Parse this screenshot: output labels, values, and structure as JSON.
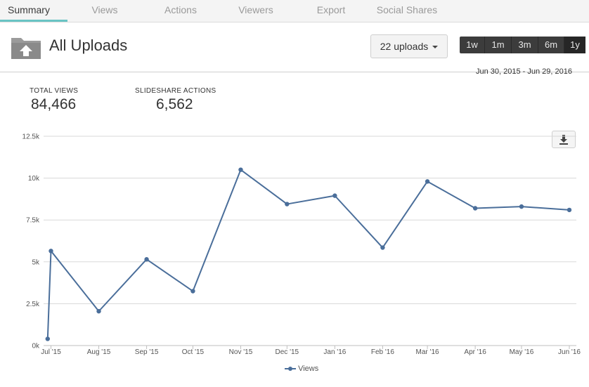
{
  "tabs": [
    {
      "label": "Summary",
      "active": true
    },
    {
      "label": "Views",
      "active": false
    },
    {
      "label": "Actions",
      "active": false
    },
    {
      "label": "Viewers",
      "active": false
    },
    {
      "label": "Export",
      "active": false
    },
    {
      "label": "Social Shares",
      "active": false
    }
  ],
  "header": {
    "title": "All Uploads",
    "uploads_selector": "22 uploads",
    "ranges": [
      "1w",
      "1m",
      "3m",
      "6m",
      "1y"
    ],
    "active_range": "1y",
    "date_range": "Jun 30, 2015 - Jun 29, 2016"
  },
  "stats": {
    "total_views_label": "TOTAL VIEWS",
    "total_views_value": "84,466",
    "actions_label": "SLIDESHARE ACTIONS",
    "actions_value": "6,562"
  },
  "icons": {
    "folder": "folder-upload-icon",
    "download": "download-icon",
    "caret": "caret-down-icon"
  },
  "colors": {
    "series": "#4a6e9a",
    "tab_underline": "#69c4c4"
  },
  "chart_data": {
    "type": "line",
    "x": [
      "2015-06-30",
      "2015-07-01",
      "2015-08-01",
      "2015-09-01",
      "2015-10-01",
      "2015-11-01",
      "2015-12-01",
      "2016-01-01",
      "2016-02-01",
      "2016-03-01",
      "2016-04-01",
      "2016-05-01",
      "2016-06-01"
    ],
    "tick_labels": [
      "Jul '15",
      "Aug '15",
      "Sep '15",
      "Oct '15",
      "Nov '15",
      "Dec '15",
      "Jan '16",
      "Feb '16",
      "Mar '16",
      "Apr '16",
      "May '16",
      "Jun '16"
    ],
    "series": [
      {
        "name": "Views",
        "values": [
          400,
          5650,
          2050,
          5150,
          3250,
          10500,
          8450,
          8950,
          5850,
          9800,
          8200,
          8300,
          8100
        ]
      }
    ],
    "y_ticks": [
      "0k",
      "2.5k",
      "5k",
      "7.5k",
      "10k",
      "12.5k"
    ],
    "ylim": [
      0,
      12500
    ],
    "grid": true,
    "legend": "bottom-center"
  }
}
